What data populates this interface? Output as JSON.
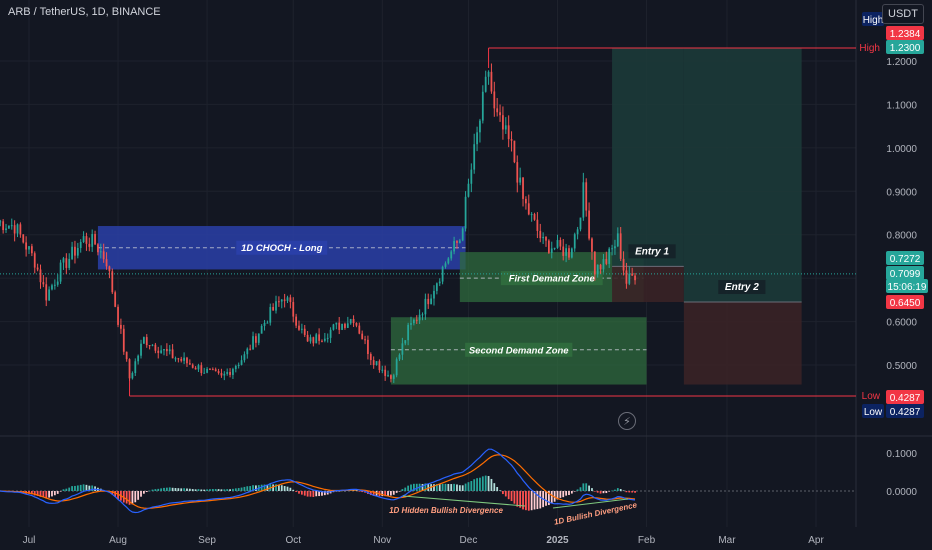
{
  "header": {
    "symbol_line": "ARB / TetherUS, 1D, BINANCE"
  },
  "currency_button": "USDT",
  "colors": {
    "background": "#131722",
    "up": "#26a69a",
    "down": "#ef5350",
    "supply_zone": "#2a3fa8",
    "demand_zone": "#2f6b3d",
    "long_profit": "#1c3a38",
    "long_loss": "#3a2226",
    "high_low_line": "#f23645",
    "macd_line": "#2962ff",
    "signal_line": "#ff6d00",
    "price_tag": "#26a69a"
  },
  "chart_data": [
    {
      "type": "candlestick",
      "y_axis_ticks": [
        "1.2000",
        "1.1000",
        "1.0000",
        "0.9000",
        "0.8000",
        "0.7000",
        "0.6000",
        "0.5000"
      ],
      "y_tick_values": [
        1.2,
        1.1,
        1.0,
        0.9,
        0.8,
        0.7,
        0.6,
        0.5
      ],
      "x_axis_ticks": [
        {
          "label": "Jul",
          "date": "2024-07-01"
        },
        {
          "label": "Aug",
          "date": "2024-08-01"
        },
        {
          "label": "Sep",
          "date": "2024-09-01"
        },
        {
          "label": "Oct",
          "date": "2024-10-01"
        },
        {
          "label": "Nov",
          "date": "2024-11-01"
        },
        {
          "label": "Dec",
          "date": "2024-12-01"
        },
        {
          "label": "2025",
          "date": "2025-01-01"
        },
        {
          "label": "Feb",
          "date": "2025-02-01"
        },
        {
          "label": "Mar",
          "date": "2025-03-01"
        },
        {
          "label": "Apr",
          "date": "2025-04-01"
        }
      ],
      "price_path": [
        {
          "date": "2024-06-20",
          "price": 0.83
        },
        {
          "date": "2024-06-26",
          "price": 0.82
        },
        {
          "date": "2024-07-03",
          "price": 0.74
        },
        {
          "date": "2024-07-07",
          "price": 0.66
        },
        {
          "date": "2024-07-12",
          "price": 0.72
        },
        {
          "date": "2024-07-20",
          "price": 0.79
        },
        {
          "date": "2024-07-24",
          "price": 0.78
        },
        {
          "date": "2024-07-28",
          "price": 0.74
        },
        {
          "date": "2024-08-05",
          "price": 0.47
        },
        {
          "date": "2024-08-10",
          "price": 0.56
        },
        {
          "date": "2024-08-20",
          "price": 0.52
        },
        {
          "date": "2024-09-06",
          "price": 0.47
        },
        {
          "date": "2024-09-14",
          "price": 0.52
        },
        {
          "date": "2024-09-22",
          "price": 0.61
        },
        {
          "date": "2024-09-28",
          "price": 0.66
        },
        {
          "date": "2024-10-06",
          "price": 0.55
        },
        {
          "date": "2024-10-14",
          "price": 0.58
        },
        {
          "date": "2024-10-22",
          "price": 0.61
        },
        {
          "date": "2024-10-28",
          "price": 0.52
        },
        {
          "date": "2024-11-04",
          "price": 0.47
        },
        {
          "date": "2024-11-10",
          "price": 0.58
        },
        {
          "date": "2024-11-16",
          "price": 0.64
        },
        {
          "date": "2024-11-24",
          "price": 0.75
        },
        {
          "date": "2024-11-28",
          "price": 0.79
        },
        {
          "date": "2024-12-02",
          "price": 0.95
        },
        {
          "date": "2024-12-08",
          "price": 1.18
        },
        {
          "date": "2024-12-10",
          "price": 1.08
        },
        {
          "date": "2024-12-16",
          "price": 1.0
        },
        {
          "date": "2024-12-20",
          "price": 0.88
        },
        {
          "date": "2024-12-27",
          "price": 0.78
        },
        {
          "date": "2025-01-05",
          "price": 0.76
        },
        {
          "date": "2025-01-08",
          "price": 0.82
        },
        {
          "date": "2025-01-10",
          "price": 0.9
        },
        {
          "date": "2025-01-14",
          "price": 0.72
        },
        {
          "date": "2025-01-18",
          "price": 0.74
        },
        {
          "date": "2025-01-22",
          "price": 0.79
        },
        {
          "date": "2025-01-25",
          "price": 0.69
        },
        {
          "date": "2025-01-28",
          "price": 0.71
        }
      ],
      "price_tags": {
        "high_top": "1.2384",
        "high": "1.2300",
        "entry_1": "0.7272",
        "last_price": "0.7099",
        "countdown": "15:06:19",
        "entry_2": "0.6450",
        "low": "0.4287",
        "low_bottom": "0.4287",
        "high_label": "High",
        "low_label": "Low"
      },
      "levels": {
        "high": 1.23,
        "low": 0.4287,
        "last": 0.7099
      },
      "zones": [
        {
          "label": "1D CHOCH - Long",
          "kind": "supply",
          "price_top": 0.82,
          "price_bottom": 0.72,
          "price_mid": 0.77,
          "date_start": "2024-07-25",
          "date_end": "2024-11-30"
        },
        {
          "label": "First Demand Zone",
          "kind": "demand",
          "price_top": 0.76,
          "price_bottom": 0.645,
          "price_mid": 0.7,
          "date_start": "2024-11-28",
          "date_end": "2025-01-31"
        },
        {
          "label": "Second Demand Zone",
          "kind": "demand",
          "price_top": 0.61,
          "price_bottom": 0.455,
          "price_mid": 0.535,
          "date_start": "2024-11-04",
          "date_end": "2025-02-01"
        }
      ],
      "positions": [
        {
          "label": "Entry 1",
          "entry": 0.7272,
          "target": 1.23,
          "stop": 0.645,
          "date_start": "2025-01-20",
          "date_end": "2025-02-14"
        },
        {
          "label": "Entry 2",
          "entry": 0.645,
          "target": 1.23,
          "stop": 0.455,
          "date_start": "2025-02-14",
          "date_end": "2025-03-27"
        }
      ]
    },
    {
      "type": "macd",
      "y_axis_ticks": [
        "0.1000",
        "0.0000"
      ],
      "y_tick_values": [
        0.1,
        0.0
      ],
      "annotations": [
        "1D Hidden Bullish Divergence",
        "1D Bullish Divergence"
      ]
    }
  ]
}
